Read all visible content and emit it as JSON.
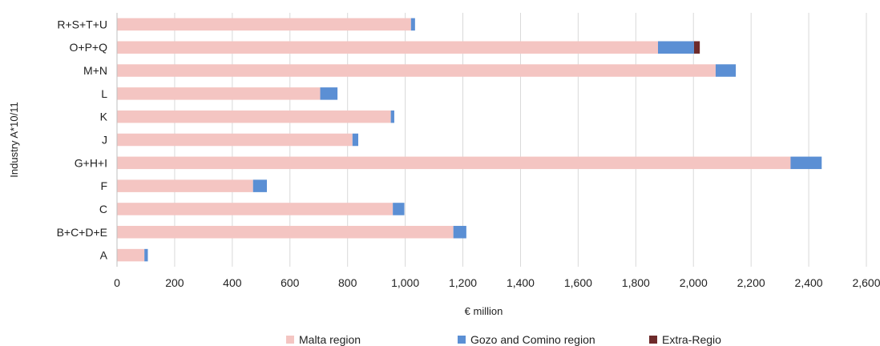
{
  "chart_data": {
    "type": "bar",
    "orientation": "horizontal",
    "stacked": true,
    "title": "",
    "xlabel": "€ million",
    "ylabel": "Industry A*10/11",
    "categories": [
      "R+S+T+U",
      "O+P+Q",
      "M+N",
      "L",
      "K",
      "J",
      "G+H+I",
      "F",
      "C",
      "B+C+D+E",
      "A"
    ],
    "series": [
      {
        "name": "Malta region",
        "color": "#f4c5c2",
        "values": [
          1020,
          1877,
          2077,
          705,
          950,
          817,
          2337,
          472,
          957,
          1167,
          95
        ]
      },
      {
        "name": "Gozo and Comino region",
        "color": "#5b8fd4",
        "values": [
          14,
          125,
          70,
          60,
          12,
          20,
          108,
          48,
          40,
          45,
          12
        ]
      },
      {
        "name": "Extra-Regio",
        "color": "#6e2b2b",
        "values": [
          0,
          20,
          0,
          0,
          0,
          0,
          0,
          0,
          0,
          0,
          0
        ]
      }
    ],
    "xlim": [
      0,
      2600
    ],
    "xticks": [
      0,
      200,
      400,
      600,
      800,
      1000,
      1200,
      1400,
      1600,
      1800,
      2000,
      2200,
      2400,
      2600
    ],
    "xtick_labels": [
      "0",
      "200",
      "400",
      "600",
      "800",
      "1,000",
      "1,200",
      "1,400",
      "1,600",
      "1,800",
      "2,000",
      "2,200",
      "2,400",
      "2,600"
    ],
    "grid": true,
    "legend_position": "bottom"
  }
}
